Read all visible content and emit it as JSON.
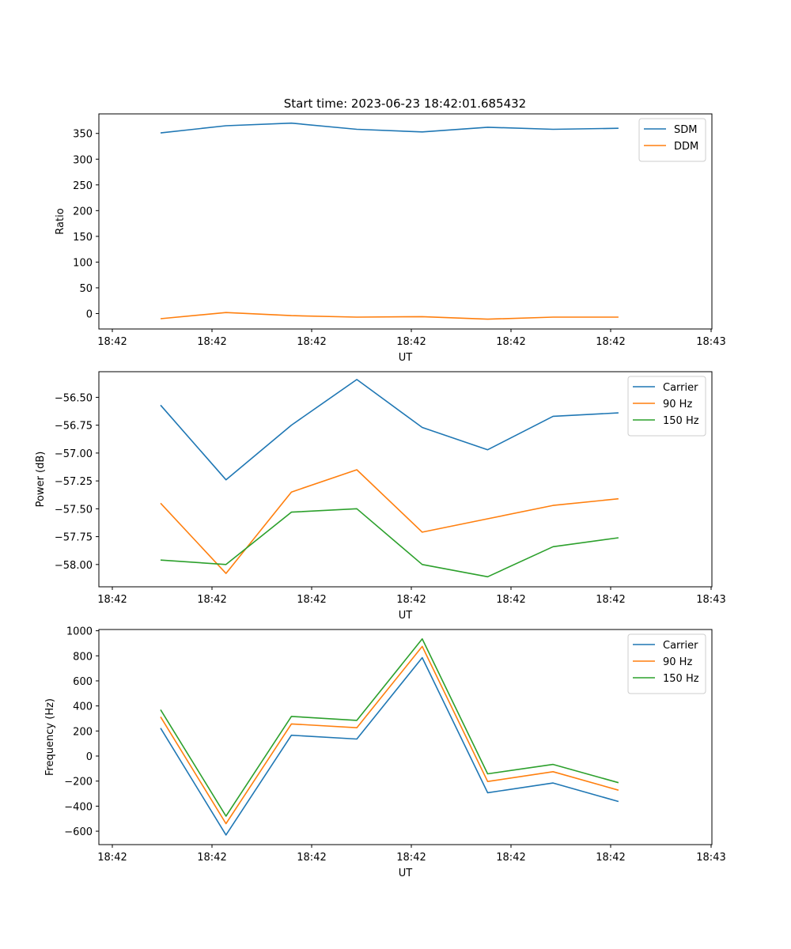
{
  "figure": {
    "title": "Start time: 2023-06-23 18:42:01.685432"
  },
  "colors": {
    "blue": "#1f77b4",
    "orange": "#ff7f0e",
    "green": "#2ca02c"
  },
  "chart_data": [
    {
      "type": "line",
      "title": "Start time: 2023-06-23 18:42:01.685432",
      "xlabel": "UT",
      "ylabel": "Ratio",
      "xticks": [
        "18:42",
        "18:42",
        "18:42",
        "18:42",
        "18:42",
        "18:42",
        "18:42",
        "18:43"
      ],
      "yticks": [
        0,
        50,
        100,
        150,
        200,
        250,
        300,
        350
      ],
      "ylim": [
        -30,
        388
      ],
      "legend_position": "top-right",
      "series": [
        {
          "name": "SDM",
          "color": "blue",
          "values": [
            351,
            365,
            370,
            358,
            353,
            362,
            358,
            360
          ]
        },
        {
          "name": "DDM",
          "color": "orange",
          "values": [
            -10,
            2,
            -4,
            -7,
            -6,
            -11,
            -7,
            -7
          ]
        }
      ]
    },
    {
      "type": "line",
      "title": "",
      "xlabel": "UT",
      "ylabel": "Power (dB)",
      "xticks": [
        "18:42",
        "18:42",
        "18:42",
        "18:42",
        "18:42",
        "18:42",
        "18:42",
        "18:43"
      ],
      "yticks": [
        "−58.00",
        "−57.75",
        "−57.50",
        "−57.25",
        "−57.00",
        "−56.75",
        "−56.50"
      ],
      "ytick_values": [
        -58.0,
        -57.75,
        -57.5,
        -57.25,
        -57.0,
        -56.75,
        -56.5
      ],
      "ylim": [
        -58.2,
        -56.27
      ],
      "legend_position": "top-right",
      "series": [
        {
          "name": "Carrier",
          "color": "blue",
          "values": [
            -56.57,
            -57.24,
            -56.75,
            -56.34,
            -56.77,
            -56.97,
            -56.67,
            -56.64
          ]
        },
        {
          "name": "90 Hz",
          "color": "orange",
          "values": [
            -57.45,
            -58.08,
            -57.35,
            -57.15,
            -57.71,
            -57.59,
            -57.47,
            -57.41
          ]
        },
        {
          "name": "150 Hz",
          "color": "green",
          "values": [
            -57.96,
            -58.0,
            -57.53,
            -57.5,
            -58.0,
            -58.11,
            -57.84,
            -57.76
          ]
        }
      ]
    },
    {
      "type": "line",
      "title": "",
      "xlabel": "UT",
      "ylabel": "Frequency (Hz)",
      "xticks": [
        "18:42",
        "18:42",
        "18:42",
        "18:42",
        "18:42",
        "18:42",
        "18:42",
        "18:43"
      ],
      "yticks": [
        "−600",
        "−400",
        "−200",
        "0",
        "200",
        "400",
        "600",
        "800",
        "1000"
      ],
      "ytick_values": [
        -600,
        -400,
        -200,
        0,
        200,
        400,
        600,
        800,
        1000
      ],
      "ylim": [
        -707,
        1010
      ],
      "legend_position": "top-right",
      "series": [
        {
          "name": "Carrier",
          "color": "blue",
          "values": [
            223,
            -630,
            166,
            136,
            785,
            -293,
            -215,
            -363
          ]
        },
        {
          "name": "90 Hz",
          "color": "orange",
          "values": [
            313,
            -540,
            256,
            226,
            875,
            -203,
            -125,
            -273
          ]
        },
        {
          "name": "150 Hz",
          "color": "green",
          "values": [
            370,
            -480,
            316,
            285,
            935,
            -142,
            -67,
            -213
          ]
        }
      ]
    }
  ]
}
